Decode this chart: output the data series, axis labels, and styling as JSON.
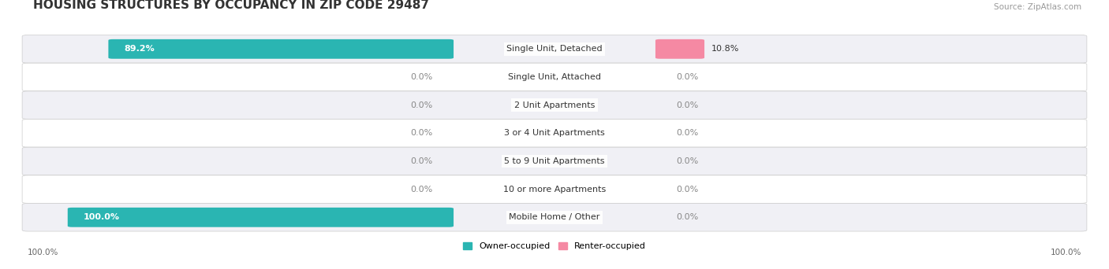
{
  "title": "HOUSING STRUCTURES BY OCCUPANCY IN ZIP CODE 29487",
  "source": "Source: ZipAtlas.com",
  "categories": [
    "Single Unit, Detached",
    "Single Unit, Attached",
    "2 Unit Apartments",
    "3 or 4 Unit Apartments",
    "5 to 9 Unit Apartments",
    "10 or more Apartments",
    "Mobile Home / Other"
  ],
  "owner_values": [
    89.2,
    0.0,
    0.0,
    0.0,
    0.0,
    0.0,
    100.0
  ],
  "renter_values": [
    10.8,
    0.0,
    0.0,
    0.0,
    0.0,
    0.0,
    0.0
  ],
  "owner_color": "#2ab5b2",
  "renter_color": "#f589a3",
  "row_bg_even": "#f0f0f5",
  "row_bg_odd": "#ffffff",
  "title_fontsize": 11,
  "label_fontsize": 8,
  "value_fontsize": 8,
  "axis_label_fontsize": 7.5,
  "source_fontsize": 7.5,
  "figsize": [
    14.06,
    3.42
  ],
  "dpi": 100
}
